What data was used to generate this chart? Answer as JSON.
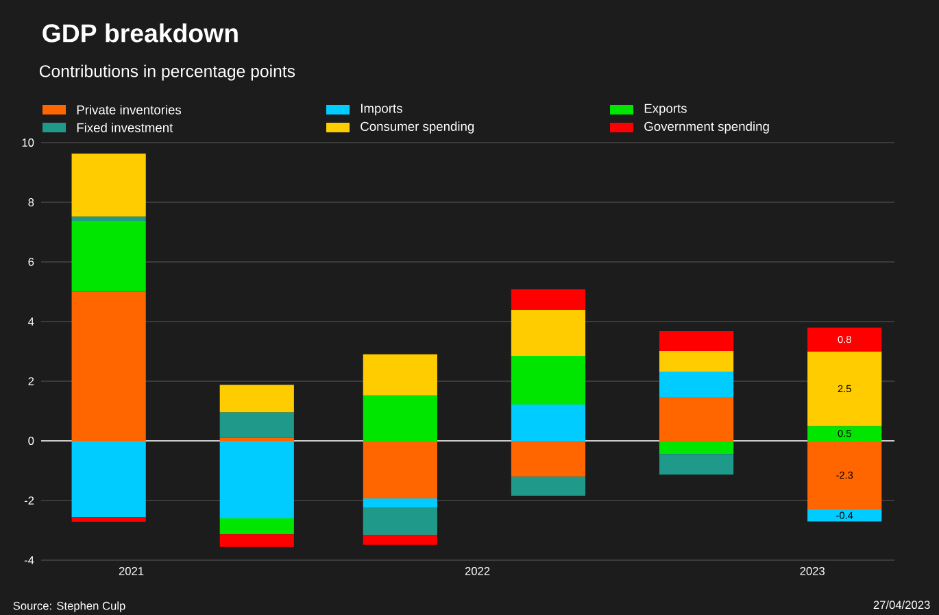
{
  "chart_data": {
    "type": "bar",
    "title": "GDP breakdown",
    "subtitle": "Contributions in percentage points",
    "x": [
      "2021-11-15",
      "2022-02-15",
      "2022-05-15",
      "2022-08-15",
      "2022-11-15",
      "2023-02-15"
    ],
    "stacked": true,
    "series": [
      {
        "name": "Private inventories",
        "color": "#ff6600",
        "values": [
          5.0,
          0.1,
          -1.93,
          -1.2,
          1.47,
          -2.3
        ],
        "value_labels": [
          null,
          null,
          null,
          null,
          null,
          "-2.3"
        ]
      },
      {
        "name": "Imports",
        "color": "#00ccff",
        "values": [
          -2.55,
          -2.6,
          -0.32,
          1.22,
          0.85,
          -0.4
        ],
        "value_labels": [
          null,
          null,
          null,
          null,
          null,
          "-0.4"
        ]
      },
      {
        "name": "Exports",
        "color": "#00e600",
        "values": [
          2.38,
          -0.53,
          1.52,
          1.63,
          -0.44,
          0.5
        ],
        "value_labels": [
          null,
          null,
          null,
          null,
          null,
          "0.5"
        ]
      },
      {
        "name": "Fixed investment",
        "color": "#1f9a8a",
        "values": [
          0.14,
          0.86,
          -0.9,
          -0.64,
          -0.69,
          null
        ]
      },
      {
        "name": "Consumer spending",
        "color": "#ffcc00",
        "values": [
          2.11,
          0.92,
          1.38,
          1.54,
          0.69,
          2.5
        ],
        "value_labels": [
          null,
          null,
          null,
          null,
          null,
          "2.5"
        ]
      },
      {
        "name": "Government spending",
        "color": "#ff0000",
        "values": [
          -0.16,
          -0.43,
          -0.34,
          0.69,
          0.67,
          0.8
        ],
        "value_labels": [
          null,
          null,
          null,
          null,
          null,
          "0.8"
        ]
      }
    ],
    "xlim": [
      "2021-10-04",
      "2023-03-18"
    ],
    "xticks": [
      {
        "value": "2021-11-29",
        "label": "2021"
      },
      {
        "value": "2022-07-02",
        "label": "2022"
      },
      {
        "value": "2023-01-26",
        "label": "2023"
      }
    ],
    "ylim": [
      -4,
      10
    ],
    "yticks": [
      -4,
      -2,
      0,
      2,
      4,
      6,
      8,
      10
    ],
    "grid": "y",
    "legend": "top",
    "ref_lines": [
      {
        "axis": "y",
        "value": 0,
        "color": "#ffffff"
      }
    ],
    "annotations": [
      "Source: Stephen Culp",
      "27/04/2023"
    ]
  }
}
